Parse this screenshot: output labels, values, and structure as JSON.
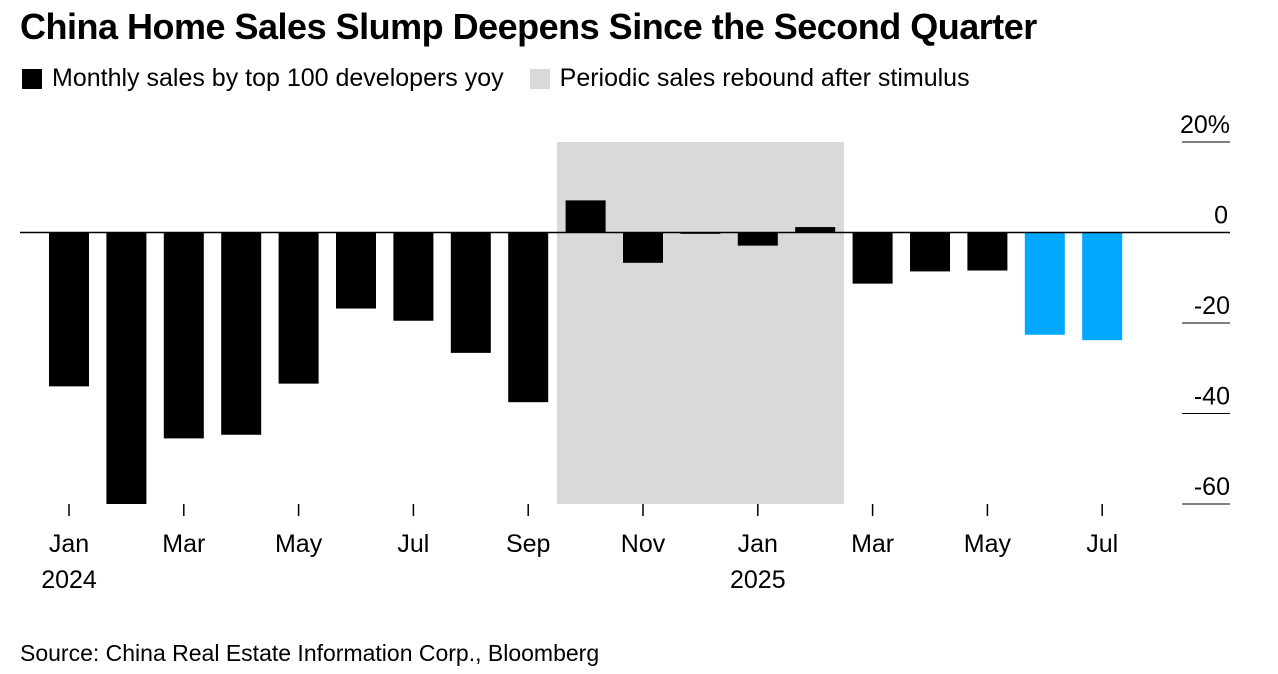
{
  "title": "China Home Sales Slump Deepens Since the Second Quarter",
  "legend": [
    {
      "label": "Monthly sales by top 100 developers yoy",
      "color": "#000000"
    },
    {
      "label": "Periodic sales rebound after stimulus",
      "color": "#d9d9d9"
    }
  ],
  "source": "Source: China Real Estate Information Corp., Bloomberg",
  "chart_data": {
    "type": "bar",
    "categories": [
      "Jan 2024",
      "Feb 2024",
      "Mar 2024",
      "Apr 2024",
      "May 2024",
      "Jun 2024",
      "Jul 2024",
      "Aug 2024",
      "Sep 2024",
      "Oct 2024",
      "Nov 2024",
      "Dec 2024",
      "Jan 2025",
      "Feb 2025",
      "Mar 2025",
      "Apr 2025",
      "May 2025",
      "Jun 2025",
      "Jul 2025"
    ],
    "values": [
      -34,
      -60,
      -45.5,
      -44.7,
      -33.4,
      -16.8,
      -19.5,
      -26.6,
      -37.5,
      7.1,
      -6.7,
      -0.3,
      -2.9,
      1.2,
      -11.3,
      -8.6,
      -8.4,
      -22.6,
      -23.8
    ],
    "highlight_months": [
      "Jun 2025",
      "Jul 2025"
    ],
    "colors": {
      "default": "#000000",
      "highlight": "#00a8ff",
      "shade": "#d9d9d9"
    },
    "shaded_range": [
      "Oct 2024",
      "Feb 2025"
    ],
    "ylim": [
      -60,
      20
    ],
    "yticks": [
      20,
      0,
      -20,
      -40,
      -60
    ],
    "ytick_labels": [
      "20%",
      "0",
      "-20",
      "-40",
      "-60"
    ],
    "xtick_labels": [
      {
        "month": "Jan 2024",
        "label": "Jan",
        "year": "2024"
      },
      {
        "month": "Mar 2024",
        "label": "Mar"
      },
      {
        "month": "May 2024",
        "label": "May"
      },
      {
        "month": "Jul 2024",
        "label": "Jul"
      },
      {
        "month": "Sep 2024",
        "label": "Sep"
      },
      {
        "month": "Nov 2024",
        "label": "Nov"
      },
      {
        "month": "Jan 2025",
        "label": "Jan",
        "year": "2025"
      },
      {
        "month": "Mar 2025",
        "label": "Mar"
      },
      {
        "month": "May 2025",
        "label": "May"
      },
      {
        "month": "Jul 2025",
        "label": "Jul"
      }
    ]
  }
}
